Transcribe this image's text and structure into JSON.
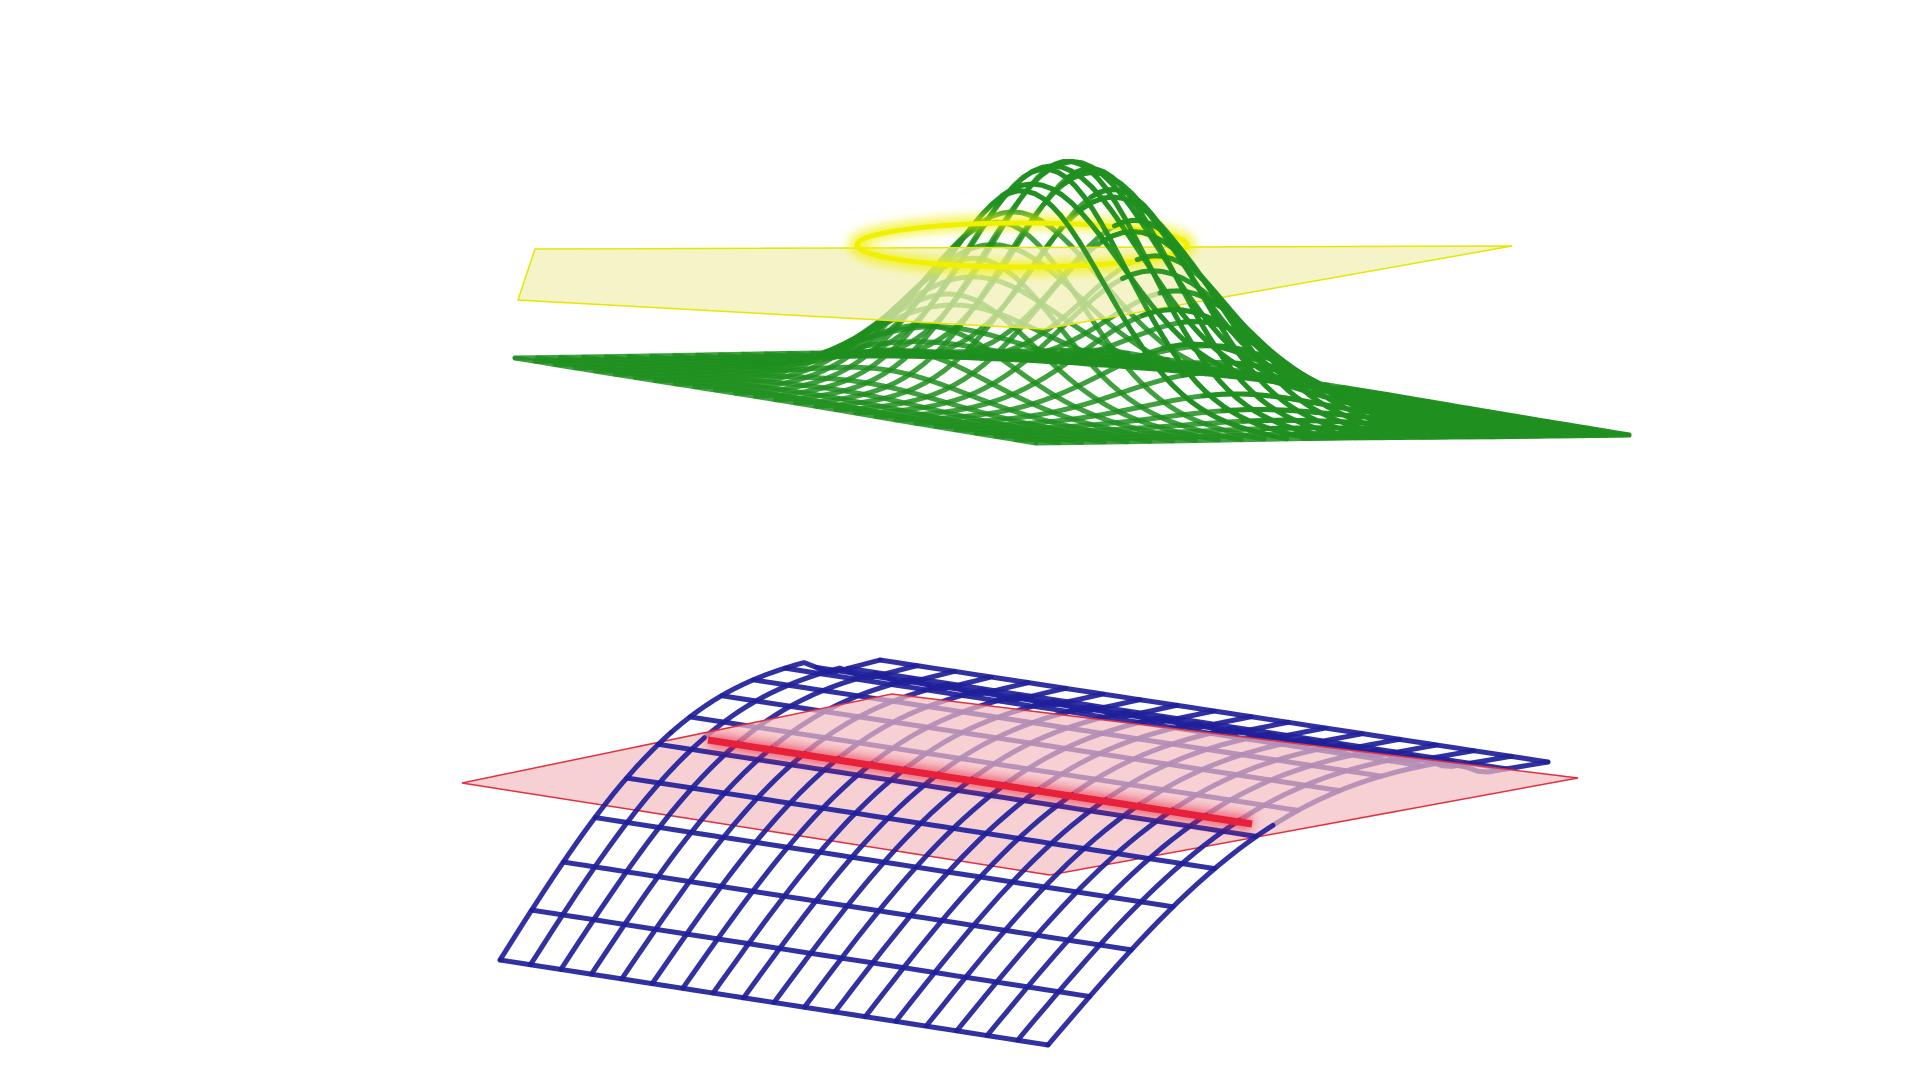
{
  "scene": {
    "background": "#ffffff",
    "diagrams": [
      {
        "id": "gaussian-bump",
        "surface": "gaussian",
        "grid": [
          26,
          26
        ],
        "surface_color": "#1f8f1f",
        "plane_fill": "#f1f0b4",
        "plane_edge": "#e6e600",
        "level_set_color": "#f0f000",
        "level_set_shape": "circle"
      },
      {
        "id": "ridge-surface",
        "surface": "ridge",
        "grid": [
          12,
          18
        ],
        "surface_color": "#20209a",
        "plane_fill": "#f4bcc2",
        "plane_edge": "#e23040",
        "level_set_color": "#e8203a",
        "level_set_shape": "line"
      }
    ]
  }
}
